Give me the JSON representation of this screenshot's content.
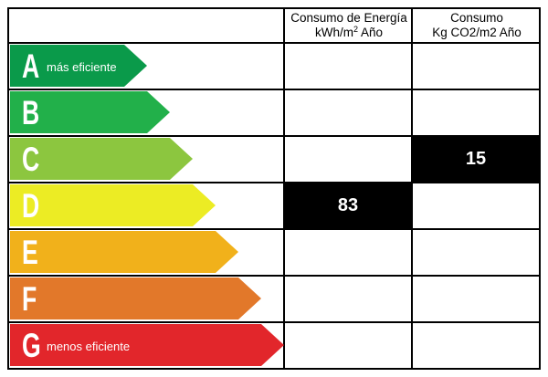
{
  "header": {
    "energy_line1": "Consumo de Energía",
    "energy_line2": "kWh/m",
    "energy_sup": "2",
    "energy_line2_tail": " Año",
    "co2_line1": "Consumo",
    "co2_line2": "Kg CO2/m2 Año"
  },
  "rating": {
    "selected_energy_class": "D",
    "selected_co2_class": "C"
  },
  "classes": [
    {
      "letter": "A",
      "sub": "más eficiente",
      "color": "#0a9a4a"
    },
    {
      "letter": "B",
      "sub": "",
      "color": "#22b04a"
    },
    {
      "letter": "C",
      "sub": "",
      "color": "#8cc63f"
    },
    {
      "letter": "D",
      "sub": "",
      "color": "#ecec24"
    },
    {
      "letter": "E",
      "sub": "",
      "color": "#f1b11b"
    },
    {
      "letter": "F",
      "sub": "",
      "color": "#e2782a"
    },
    {
      "letter": "G",
      "sub": "menos eficiente",
      "color": "#e2262b"
    }
  ],
  "values": {
    "energy": "83",
    "co2": "15"
  },
  "colors": {
    "grid": "#000000",
    "value_box": "#000000",
    "value_text": "#ffffff"
  }
}
